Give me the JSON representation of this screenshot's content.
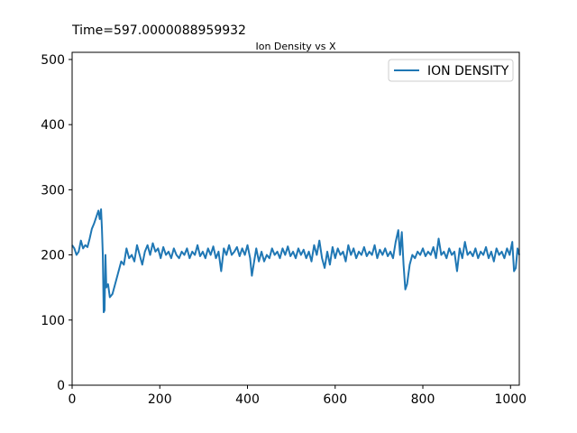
{
  "chart_data": {
    "type": "line",
    "annotation": "Time=597.0000088959932",
    "title": "Ion Density vs X",
    "xlim": [
      0,
      1020
    ],
    "ylim": [
      0,
      511
    ],
    "xticks": [
      0,
      200,
      400,
      600,
      800,
      1000
    ],
    "yticks": [
      0,
      100,
      200,
      300,
      400,
      500
    ],
    "legend": "upper right",
    "x": [
      0,
      5,
      10,
      15,
      20,
      25,
      30,
      35,
      40,
      45,
      50,
      55,
      60,
      63,
      66,
      68,
      70,
      72,
      74,
      76,
      78,
      82,
      86,
      92,
      100,
      106,
      112,
      118,
      124,
      130,
      136,
      142,
      148,
      154,
      160,
      166,
      172,
      178,
      184,
      190,
      196,
      202,
      208,
      214,
      220,
      226,
      232,
      238,
      244,
      250,
      256,
      262,
      268,
      274,
      280,
      286,
      292,
      298,
      304,
      310,
      316,
      322,
      328,
      334,
      340,
      346,
      352,
      358,
      364,
      370,
      376,
      382,
      388,
      394,
      400,
      406,
      410,
      414,
      420,
      426,
      432,
      438,
      444,
      450,
      456,
      462,
      468,
      474,
      480,
      486,
      492,
      498,
      504,
      510,
      516,
      522,
      528,
      534,
      540,
      546,
      552,
      558,
      564,
      570,
      576,
      582,
      588,
      594,
      600,
      606,
      612,
      618,
      624,
      630,
      636,
      642,
      648,
      654,
      660,
      666,
      672,
      678,
      684,
      690,
      696,
      702,
      708,
      714,
      720,
      726,
      732,
      738,
      744,
      748,
      752,
      756,
      760,
      764,
      770,
      776,
      782,
      788,
      794,
      800,
      806,
      812,
      818,
      824,
      830,
      836,
      842,
      848,
      854,
      860,
      866,
      872,
      878,
      884,
      890,
      896,
      902,
      908,
      914,
      920,
      926,
      932,
      938,
      944,
      950,
      956,
      962,
      968,
      974,
      980,
      986,
      992,
      998,
      1004,
      1008,
      1012,
      1016,
      1020
    ],
    "series": [
      {
        "name": "ION DENSITY",
        "color": "#1f77b4",
        "values": [
          215,
          210,
          200,
          205,
          222,
          210,
          215,
          212,
          225,
          240,
          248,
          258,
          268,
          255,
          270,
          240,
          200,
          112,
          115,
          200,
          150,
          155,
          135,
          140,
          160,
          175,
          190,
          185,
          210,
          195,
          200,
          190,
          215,
          200,
          185,
          205,
          215,
          200,
          218,
          205,
          210,
          195,
          212,
          200,
          205,
          195,
          210,
          200,
          195,
          205,
          200,
          210,
          195,
          205,
          200,
          215,
          198,
          205,
          195,
          210,
          200,
          213,
          195,
          205,
          175,
          210,
          200,
          215,
          200,
          205,
          212,
          198,
          210,
          200,
          215,
          195,
          168,
          185,
          210,
          190,
          205,
          190,
          200,
          195,
          210,
          200,
          205,
          195,
          210,
          200,
          213,
          198,
          205,
          195,
          210,
          200,
          208,
          195,
          205,
          190,
          215,
          200,
          222,
          195,
          180,
          205,
          185,
          212,
          195,
          210,
          200,
          205,
          190,
          215,
          200,
          210,
          195,
          205,
          200,
          212,
          198,
          205,
          200,
          215,
          195,
          208,
          200,
          210,
          198,
          205,
          195,
          220,
          238,
          200,
          235,
          185,
          147,
          155,
          185,
          200,
          195,
          205,
          200,
          210,
          198,
          205,
          200,
          212,
          195,
          225,
          200,
          205,
          195,
          210,
          200,
          205,
          175,
          210,
          195,
          220,
          200,
          205,
          198,
          210,
          195,
          205,
          200,
          212,
          195,
          205,
          190,
          210,
          200,
          205,
          195,
          210,
          200,
          220,
          175,
          180,
          210,
          200
        ]
      }
    ]
  }
}
